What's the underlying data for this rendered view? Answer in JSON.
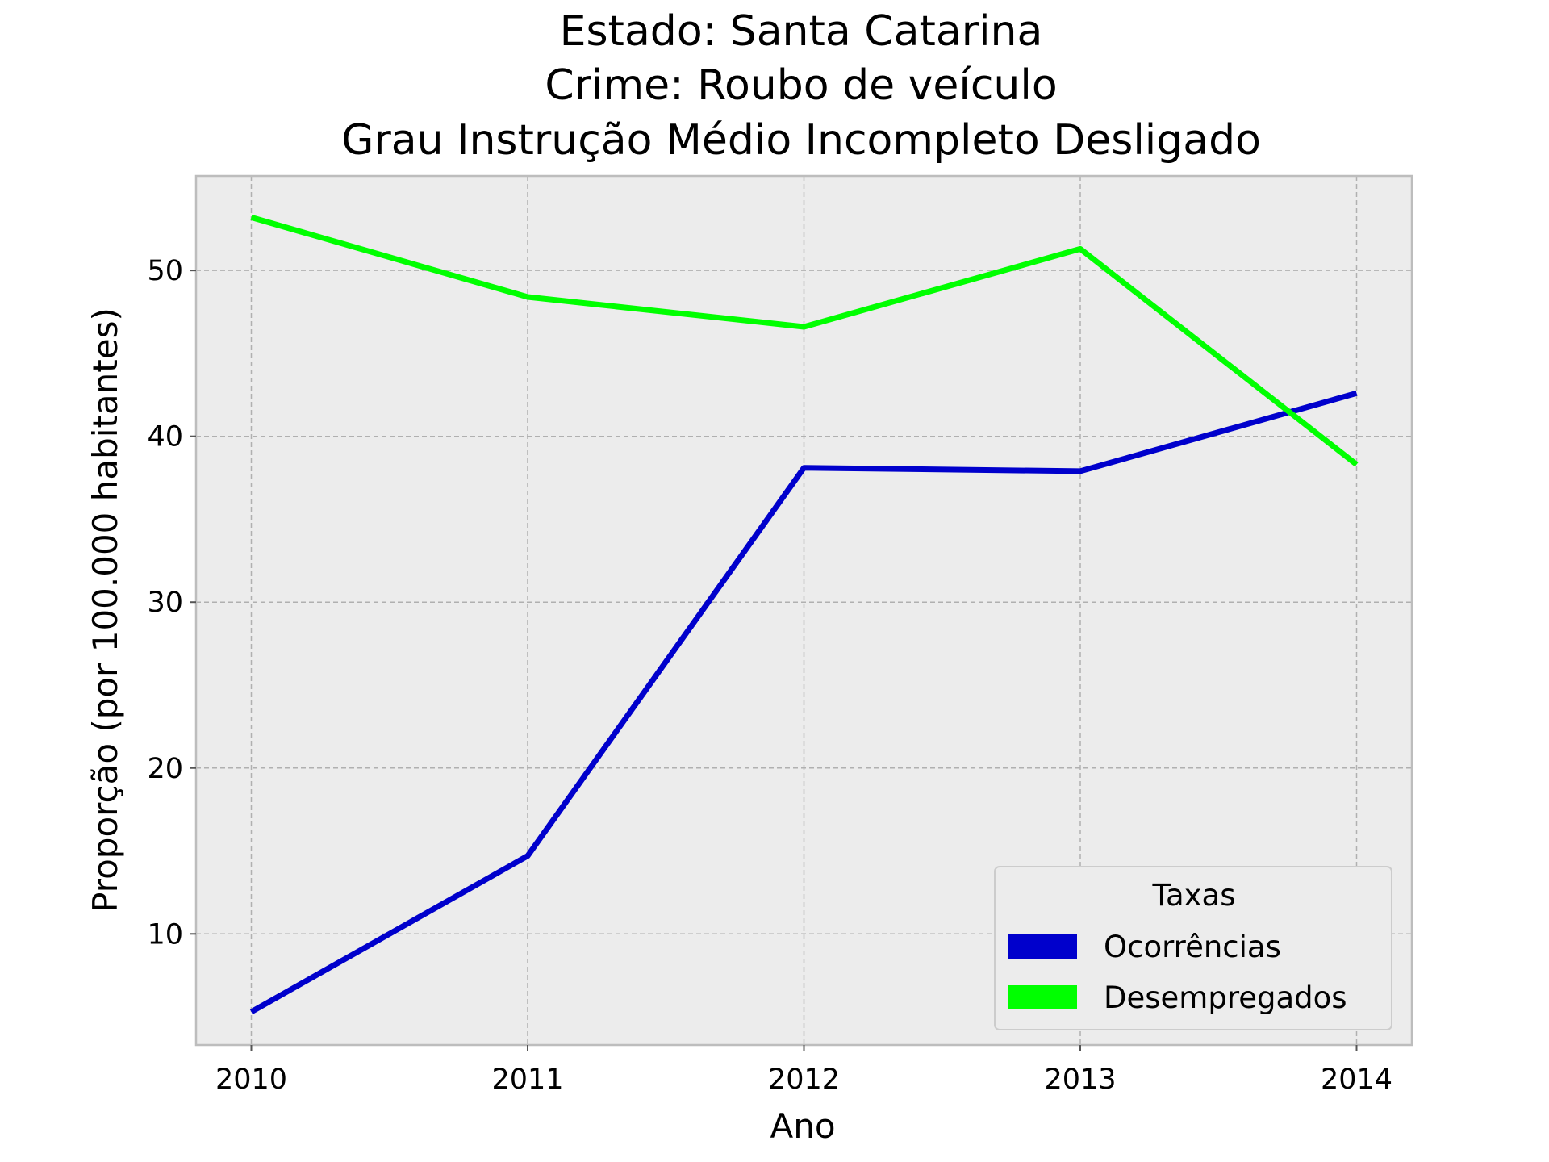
{
  "chart_data": {
    "type": "line",
    "title_lines": [
      "Estado: Santa Catarina",
      "Crime: Roubo de veículo",
      "Grau Instrução  Médio Incompleto   Desligado"
    ],
    "xlabel": "Ano",
    "ylabel": "Proporção (por 100.000 habitantes)",
    "x": [
      2010,
      2011,
      2012,
      2013,
      2014
    ],
    "x_tick_labels": [
      "2010",
      "2011",
      "2012",
      "2013",
      "2014"
    ],
    "y_ticks": [
      10,
      20,
      30,
      40,
      50
    ],
    "xlim": [
      2009.8,
      2014.2
    ],
    "ylim": [
      3.3,
      55.7
    ],
    "grid": true,
    "legend": {
      "title": "Taxas",
      "placement": "bottom-right"
    },
    "series": [
      {
        "name": "Ocorrências",
        "color": "#0000cc",
        "values": [
          5.3,
          14.7,
          38.1,
          37.9,
          42.6
        ]
      },
      {
        "name": "Desempregados",
        "color": "#00ff00",
        "values": [
          53.2,
          48.4,
          46.6,
          51.3,
          38.3
        ]
      }
    ]
  }
}
